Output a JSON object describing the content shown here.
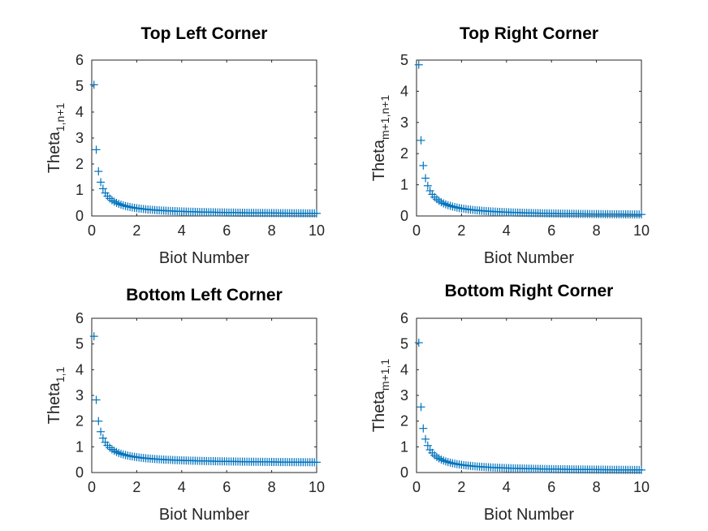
{
  "chart_data": [
    {
      "type": "scatter",
      "title": "Top Left Corner",
      "xlabel": "Biot Number",
      "ylabel": {
        "base": "Theta",
        "sub": "1,n+1"
      },
      "xlim": [
        0,
        10
      ],
      "ylim": [
        0,
        6
      ],
      "xticks": [
        0,
        2,
        4,
        6,
        8,
        10
      ],
      "yticks": [
        0,
        1,
        2,
        3,
        4,
        5,
        6
      ],
      "marker": "+",
      "color": "#0072BD",
      "x_range": {
        "start": 0.1,
        "end": 10,
        "step": 0.1
      },
      "curve": {
        "peak": 5.05,
        "floor": 0.05
      }
    },
    {
      "type": "scatter",
      "title": "Top Right Corner",
      "xlabel": "Biot Number",
      "ylabel": {
        "base": "Theta",
        "sub": "m+1,n+1"
      },
      "xlim": [
        0,
        10
      ],
      "ylim": [
        0,
        5
      ],
      "xticks": [
        0,
        2,
        4,
        6,
        8,
        10
      ],
      "yticks": [
        0,
        1,
        2,
        3,
        4,
        5
      ],
      "marker": "+",
      "color": "#0072BD",
      "x_range": {
        "start": 0.1,
        "end": 10,
        "step": 0.1
      },
      "curve": {
        "peak": 4.85,
        "floor": 0.0
      }
    },
    {
      "type": "scatter",
      "title": "Bottom Left Corner",
      "xlabel": "Biot Number",
      "ylabel": {
        "base": "Theta",
        "sub": "1,1"
      },
      "xlim": [
        0,
        10
      ],
      "ylim": [
        0,
        6
      ],
      "xticks": [
        0,
        2,
        4,
        6,
        8,
        10
      ],
      "yticks": [
        0,
        1,
        2,
        3,
        4,
        5,
        6
      ],
      "marker": "+",
      "color": "#0072BD",
      "x_range": {
        "start": 0.1,
        "end": 10,
        "step": 0.1
      },
      "curve": {
        "peak": 5.3,
        "floor": 0.35
      }
    },
    {
      "type": "scatter",
      "title": "Bottom Right Corner",
      "xlabel": "Biot Number",
      "ylabel": {
        "base": "Theta",
        "sub": "m+1,1"
      },
      "xlim": [
        0,
        10
      ],
      "ylim": [
        0,
        6
      ],
      "xticks": [
        0,
        2,
        4,
        6,
        8,
        10
      ],
      "yticks": [
        0,
        1,
        2,
        3,
        4,
        5,
        6
      ],
      "marker": "+",
      "color": "#0072BD",
      "x_range": {
        "start": 0.1,
        "end": 10,
        "step": 0.1
      },
      "curve": {
        "peak": 5.05,
        "floor": 0.05
      }
    }
  ]
}
